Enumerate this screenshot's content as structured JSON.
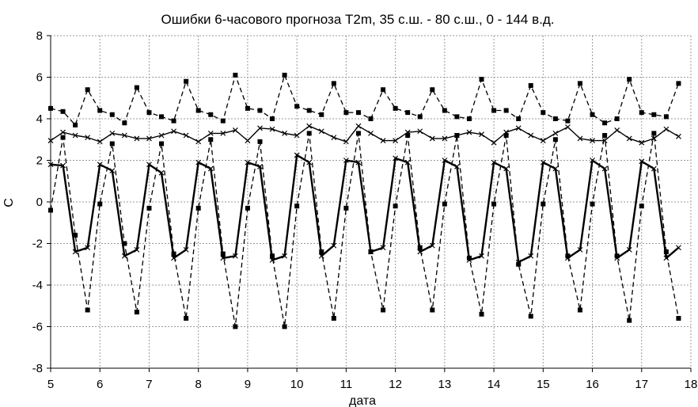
{
  "chart_data": {
    "type": "line",
    "title": "Ошибки 6-часового прогноза T2m, 35 с.ш. - 80 с.ш.,  0  - 144 в.д.",
    "xlabel": "дата",
    "ylabel": "С",
    "xlim": [
      5,
      18
    ],
    "ylim": [
      -8,
      8
    ],
    "x_ticks": [
      5,
      6,
      7,
      8,
      9,
      10,
      11,
      12,
      13,
      14,
      15,
      16,
      17,
      18
    ],
    "y_ticks": [
      8,
      6,
      4,
      2,
      0,
      -2,
      -4,
      -6,
      -8
    ],
    "grid": true,
    "legend": "none",
    "x": [
      5,
      5.25,
      5.5,
      5.75,
      6,
      6.25,
      6.5,
      6.75,
      7,
      7.25,
      7.5,
      7.75,
      8,
      8.25,
      8.5,
      8.75,
      9,
      9.25,
      9.5,
      9.75,
      10,
      10.25,
      10.5,
      10.75,
      11,
      11.25,
      11.5,
      11.75,
      12,
      12.25,
      12.5,
      12.75,
      13,
      13.25,
      13.5,
      13.75,
      14,
      14.25,
      14.5,
      14.75,
      15,
      15.25,
      15.5,
      15.75,
      16,
      16.25,
      16.5,
      16.75,
      17,
      17.25,
      17.5,
      17.75
    ],
    "series": [
      {
        "style": "dashed-square",
        "values": [
          4.5,
          4.35,
          3.7,
          5.4,
          4.4,
          4.2,
          3.8,
          5.5,
          4.3,
          4.1,
          3.9,
          5.8,
          4.4,
          4.2,
          3.9,
          6.1,
          4.5,
          4.4,
          4.0,
          6.1,
          4.6,
          4.4,
          4.2,
          5.7,
          4.3,
          4.3,
          4.0,
          5.4,
          4.5,
          4.3,
          4.1,
          5.4,
          4.4,
          4.1,
          4.0,
          5.9,
          4.4,
          4.4,
          4.0,
          5.6,
          4.3,
          4.0,
          3.9,
          5.7,
          4.2,
          3.8,
          4.0,
          5.9,
          4.3,
          4.2,
          4.1,
          5.7
        ]
      },
      {
        "style": "solid-cross",
        "values": [
          2.95,
          3.35,
          3.2,
          3.1,
          2.9,
          3.3,
          3.2,
          3.05,
          3.05,
          3.2,
          3.4,
          3.2,
          2.9,
          3.3,
          3.3,
          3.45,
          2.95,
          3.55,
          3.5,
          3.3,
          3.2,
          3.65,
          3.4,
          3.1,
          2.9,
          3.65,
          3.3,
          2.95,
          2.95,
          3.35,
          3.4,
          3.05,
          3.05,
          3.2,
          3.35,
          3.25,
          2.85,
          3.35,
          3.55,
          3.2,
          2.95,
          3.3,
          3.6,
          3.05,
          2.95,
          2.95,
          3.45,
          3.05,
          2.85,
          3.05,
          3.5,
          3.15
        ]
      },
      {
        "style": "dashed-square",
        "values": [
          -0.4,
          3.1,
          -1.6,
          -5.2,
          -0.1,
          2.8,
          -2.0,
          -5.3,
          -0.3,
          2.8,
          -2.5,
          -5.6,
          -0.3,
          3.0,
          -2.5,
          -6.0,
          -0.3,
          2.9,
          -2.6,
          -6.0,
          -0.2,
          3.3,
          -2.4,
          -5.6,
          -0.3,
          3.3,
          -2.4,
          -5.2,
          -0.2,
          3.2,
          -2.2,
          -5.2,
          -0.1,
          3.2,
          -2.7,
          -5.4,
          -0.1,
          3.2,
          -3.0,
          -5.5,
          -0.1,
          3.0,
          -2.6,
          -5.2,
          -0.1,
          3.2,
          -2.6,
          -5.7,
          -0.2,
          3.3,
          -2.4,
          -5.6
        ]
      },
      {
        "style": "solid-cross",
        "values": [
          1.8,
          1.75,
          -2.4,
          -2.2,
          1.8,
          1.5,
          -2.6,
          -2.3,
          1.8,
          1.4,
          -2.7,
          -2.3,
          1.9,
          1.6,
          -2.7,
          -2.6,
          1.9,
          1.7,
          -2.8,
          -2.6,
          2.25,
          1.9,
          -2.6,
          -2.1,
          2.0,
          1.9,
          -2.4,
          -2.2,
          2.1,
          1.9,
          -2.4,
          -2.1,
          2.0,
          1.7,
          -2.8,
          -2.6,
          1.9,
          1.6,
          -2.9,
          -2.6,
          1.9,
          1.6,
          -2.7,
          -2.3,
          2.0,
          1.6,
          -2.7,
          -2.3,
          1.95,
          1.6,
          -2.7,
          -2.2
        ]
      }
    ]
  }
}
